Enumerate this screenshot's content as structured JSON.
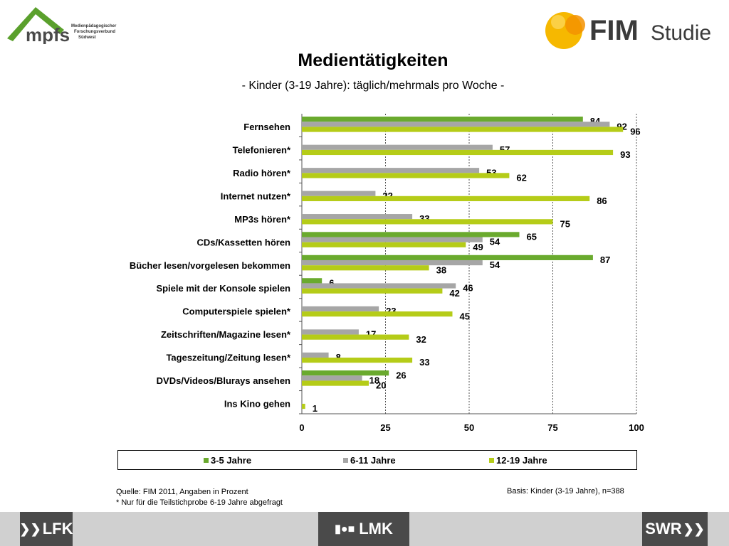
{
  "header": {
    "left_logo_text": "mpfs",
    "left_logo_caption": [
      "Medienpädagogischer",
      "Forschungsverbund",
      "Südwest"
    ],
    "right_logo_text_bold": "FIM",
    "right_logo_text_light": "Studie"
  },
  "colors": {
    "series_3_5": "#6aaa2e",
    "series_6_11": "#a6a6a6",
    "series_12_19": "#b5cc18",
    "gridline": "#555555"
  },
  "chart_data": {
    "type": "bar",
    "orientation": "horizontal",
    "title": "Medientätigkeiten",
    "subtitle": "- Kinder (3-19 Jahre): täglich/mehrmals pro Woche -",
    "categories": [
      "Fernsehen",
      "Telefonieren*",
      "Radio hören*",
      "Internet nutzen*",
      "MP3s hören*",
      "CDs/Kassetten  hören",
      "Bücher lesen/vorgelesen  bekommen",
      "Spiele mit der Konsole spielen",
      "Computerspiele  spielen*",
      "Zeitschriften/Magazine  lesen*",
      "Tageszeitung/Zeitung  lesen*",
      "DVDs/Videos/Blurays  ansehen",
      "Ins Kino gehen"
    ],
    "series": [
      {
        "name": "3-5 Jahre",
        "values": [
          84,
          null,
          null,
          null,
          null,
          65,
          87,
          6,
          null,
          null,
          null,
          26,
          null
        ]
      },
      {
        "name": "6-11 Jahre",
        "values": [
          92,
          57,
          53,
          22,
          33,
          54,
          54,
          46,
          23,
          17,
          8,
          18,
          null
        ]
      },
      {
        "name": "12-19  Jahre",
        "values": [
          96,
          93,
          62,
          86,
          75,
          49,
          38,
          42,
          45,
          32,
          33,
          20,
          1
        ]
      }
    ],
    "xlim": [
      0,
      100
    ],
    "xticks": [
      "0",
      "25",
      "50",
      "75",
      "100"
    ],
    "grid": "vertical dashed",
    "legend_position": "bottom"
  },
  "footnotes": {
    "source": "Quelle: FIM 2011, Angaben in Prozent",
    "note": "* Nur für die Teilstichprobe 6-19 Jahre abgefragt",
    "basis": "Basis: Kinder (3-19 Jahre), n=388"
  },
  "footer": {
    "left_logo": "LFK",
    "center_logo": "LMK",
    "right_logo": "SWR"
  }
}
